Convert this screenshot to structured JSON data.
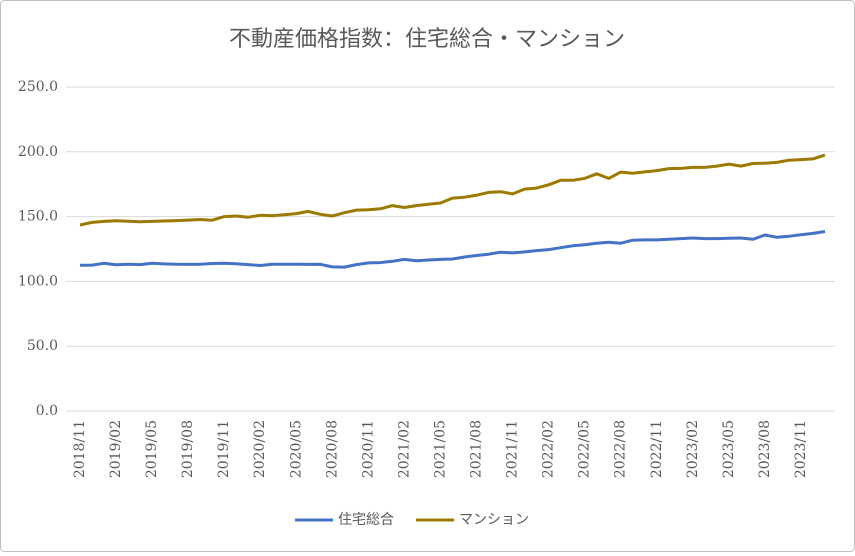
{
  "chart_data": {
    "type": "line",
    "title": "不動産価格指数：住宅総合・マンション",
    "categories": [
      "2018/11",
      null,
      null,
      "2019/02",
      null,
      null,
      "2019/05",
      null,
      null,
      "2019/08",
      null,
      null,
      "2019/11",
      null,
      null,
      "2020/02",
      null,
      null,
      "2020/05",
      null,
      null,
      "2020/08",
      null,
      null,
      "2020/11",
      null,
      null,
      "2021/02",
      null,
      null,
      "2021/05",
      null,
      null,
      "2021/08",
      null,
      null,
      "2021/11",
      null,
      null,
      "2022/02",
      null,
      null,
      "2022/05",
      null,
      null,
      "2022/08",
      null,
      null,
      "2022/11",
      null,
      null,
      "2023/02",
      null,
      null,
      "2023/05",
      null,
      null,
      "2023/08",
      null,
      null,
      "2023/11",
      null,
      null
    ],
    "series": [
      {
        "name": "住宅総合",
        "color": "#4472c4",
        "values": [
          112.5,
          112.6,
          114,
          112.8,
          113.3,
          113,
          114,
          113.5,
          113.2,
          113.1,
          113.3,
          113.8,
          114,
          113.6,
          113,
          112.3,
          113.2,
          113.2,
          113.3,
          113.1,
          113.2,
          111.2,
          111,
          113,
          114.3,
          114.5,
          115.5,
          117,
          116,
          116.5,
          117,
          117.3,
          118.8,
          120,
          121,
          122.5,
          122,
          122.8,
          123.8,
          124.5,
          126,
          127.5,
          128.3,
          129.5,
          130.2,
          129.5,
          131.8,
          132,
          132,
          132.5,
          133,
          133.5,
          133,
          133,
          133.3,
          133.5,
          132.5,
          135.8,
          134,
          134.8,
          136,
          137,
          138.5
        ]
      },
      {
        "name": "マンション",
        "color": "#9c7a00",
        "values": [
          143.5,
          145.5,
          146.3,
          146.8,
          146.4,
          146,
          146.3,
          146.6,
          146.9,
          147.3,
          147.8,
          147.2,
          150,
          150.5,
          149.5,
          151,
          150.6,
          151.5,
          152.3,
          154,
          151.8,
          150.5,
          153,
          155,
          155.3,
          156,
          158.5,
          157,
          158.5,
          159.5,
          160.5,
          164.3,
          165,
          166.5,
          168.7,
          169.2,
          167.5,
          171.2,
          172,
          174.5,
          178,
          178,
          179.5,
          183,
          179.5,
          184.3,
          183.5,
          184.5,
          185.5,
          187,
          187.2,
          188,
          188,
          189,
          190.5,
          189,
          191,
          191.2,
          191.8,
          193.5,
          194,
          194.5,
          197.5
        ]
      }
    ],
    "ylim": [
      0,
      250
    ],
    "yticks": [
      {
        "value": 0,
        "label": "0.0"
      },
      {
        "value": 50,
        "label": "50.0"
      },
      {
        "value": 100,
        "label": "100.0"
      },
      {
        "value": 150,
        "label": "150.0"
      },
      {
        "value": 200,
        "label": "200.0"
      },
      {
        "value": 250,
        "label": "250.0"
      }
    ],
    "grid": true,
    "legend": "bottom"
  }
}
